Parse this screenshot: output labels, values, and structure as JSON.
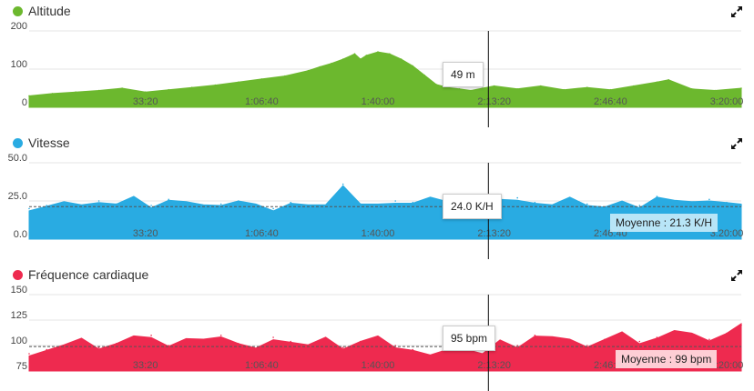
{
  "panels": [
    {
      "key": "altitude",
      "title": "Altitude",
      "color": "#6cb82e",
      "tooltip": "49 m",
      "average_label": "",
      "icon": "expand-arrows-icon"
    },
    {
      "key": "vitesse",
      "title": "Vitesse",
      "color": "#29abe2",
      "tooltip": "24.0 K/H",
      "average_label": "Moyenne : 21.3 K/H",
      "icon": "expand-arrows-icon"
    },
    {
      "key": "frequence",
      "title": "Fréquence cardiaque",
      "color": "#ee2a4f",
      "tooltip": "95 bpm",
      "average_label": "Moyenne : 99 bpm",
      "icon": "expand-arrows-icon"
    }
  ],
  "chart_data": [
    {
      "type": "area",
      "title": "Altitude",
      "xlabel": "",
      "ylabel": "",
      "x_ticks": [
        "33:20",
        "1:06:40",
        "1:40:00",
        "2:13:20",
        "2:46:40",
        "3:20:00"
      ],
      "y_ticks": [
        "0",
        "100",
        "200"
      ],
      "ylim": [
        0,
        200
      ],
      "xlim_seconds": [
        0,
        12250
      ],
      "cursor_x_seconds": 7900,
      "cursor_value": 49,
      "unit": "m",
      "grid": true,
      "series": [
        {
          "x_seconds": [
            0,
            400,
            800,
            1200,
            1600,
            2000,
            2400,
            2800,
            3200,
            3600,
            4000,
            4400,
            4800,
            5000,
            5200,
            5400,
            5600,
            5700,
            5800,
            6000,
            6200,
            6400,
            6600,
            6800,
            7000,
            7200,
            7400,
            7600,
            7800,
            8000,
            8400,
            8800,
            9200,
            9600,
            10000,
            10400,
            10800,
            11000,
            11400,
            11800,
            12250
          ],
          "values": [
            30,
            36,
            40,
            44,
            50,
            40,
            46,
            52,
            58,
            66,
            74,
            82,
            96,
            106,
            115,
            126,
            140,
            126,
            136,
            145,
            140,
            126,
            108,
            84,
            60,
            52,
            48,
            44,
            50,
            56,
            48,
            56,
            46,
            52,
            46,
            56,
            66,
            72,
            48,
            44,
            50
          ]
        }
      ]
    },
    {
      "type": "area",
      "title": "Vitesse",
      "xlabel": "",
      "ylabel": "",
      "x_ticks": [
        "33:20",
        "1:06:40",
        "1:40:00",
        "2:13:20",
        "2:46:40",
        "3:20:00"
      ],
      "y_ticks": [
        "0.0",
        "25.0",
        "50.0"
      ],
      "ylim": [
        0,
        50
      ],
      "xlim_seconds": [
        0,
        12250
      ],
      "cursor_x_seconds": 7900,
      "cursor_value": 24.0,
      "unit": "K/H",
      "average": 21.3,
      "grid": true,
      "series": [
        {
          "x_seconds": [
            0,
            300,
            600,
            900,
            1200,
            1500,
            1800,
            2100,
            2400,
            2700,
            3000,
            3300,
            3600,
            3900,
            4200,
            4500,
            4800,
            5100,
            5400,
            5700,
            6000,
            6300,
            6600,
            6900,
            7200,
            7500,
            7800,
            8100,
            8400,
            8700,
            9000,
            9300,
            9600,
            9900,
            10200,
            10500,
            10800,
            11100,
            11400,
            11700,
            12000,
            12250
          ],
          "values": [
            20,
            22,
            24,
            21,
            25,
            23,
            27,
            22,
            26,
            24,
            21,
            23,
            25,
            22,
            20,
            24,
            22,
            21,
            36,
            23,
            22,
            25,
            24,
            27,
            23,
            26,
            24,
            25,
            27,
            24,
            22,
            26,
            23,
            21,
            24,
            22,
            28,
            25,
            23,
            26,
            24,
            22
          ]
        }
      ]
    },
    {
      "type": "area",
      "title": "Fréquence cardiaque",
      "xlabel": "",
      "ylabel": "",
      "x_ticks": [
        "33:20",
        "1:06:40",
        "1:40:00",
        "2:13:20",
        "2:46:40",
        "3:20:00"
      ],
      "y_ticks": [
        "75",
        "100",
        "125",
        "150"
      ],
      "ylim": [
        75,
        150
      ],
      "xlim_seconds": [
        0,
        12250
      ],
      "cursor_x_seconds": 7900,
      "cursor_value": 95,
      "unit": "bpm",
      "average": 99,
      "grid": true,
      "series": [
        {
          "x_seconds": [
            0,
            300,
            600,
            900,
            1200,
            1500,
            1800,
            2100,
            2400,
            2700,
            3000,
            3300,
            3600,
            3900,
            4200,
            4500,
            4800,
            5100,
            5400,
            5700,
            6000,
            6300,
            6600,
            6900,
            7200,
            7500,
            7800,
            8100,
            8400,
            8700,
            9000,
            9300,
            9600,
            9900,
            10200,
            10500,
            10800,
            11100,
            11400,
            11700,
            12000,
            12250
          ],
          "values": [
            92,
            96,
            100,
            105,
            98,
            102,
            108,
            110,
            100,
            106,
            104,
            110,
            102,
            96,
            108,
            104,
            100,
            106,
            98,
            104,
            108,
            100,
            96,
            90,
            94,
            98,
            92,
            104,
            100,
            110,
            108,
            104,
            100,
            106,
            112,
            104,
            108,
            114,
            110,
            106,
            112,
            120
          ]
        }
      ]
    }
  ]
}
